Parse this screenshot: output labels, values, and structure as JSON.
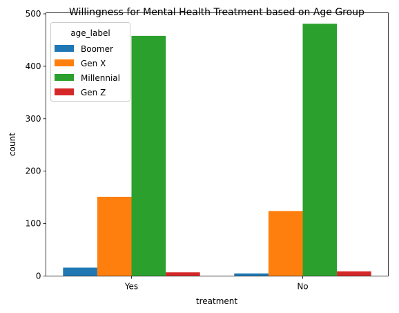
{
  "chart_data": {
    "type": "bar",
    "title": "Willingness for Mental Health Treatment based on Age Group",
    "xlabel": "treatment",
    "ylabel": "count",
    "categories": [
      "Yes",
      "No"
    ],
    "series": [
      {
        "name": "Boomer",
        "values": [
          16,
          5
        ],
        "color": "#1f77b4"
      },
      {
        "name": "Gen X",
        "values": [
          151,
          124
        ],
        "color": "#ff7f0e"
      },
      {
        "name": "Millennial",
        "values": [
          458,
          481
        ],
        "color": "#2ca02c"
      },
      {
        "name": "Gen Z",
        "values": [
          7,
          9
        ],
        "color": "#d62728"
      }
    ],
    "ylim": [
      0,
      502
    ],
    "yticks": [
      0,
      100,
      200,
      300,
      400,
      500
    ],
    "legend": {
      "title": "age_label",
      "placement": "upper-left"
    },
    "grid": false
  }
}
